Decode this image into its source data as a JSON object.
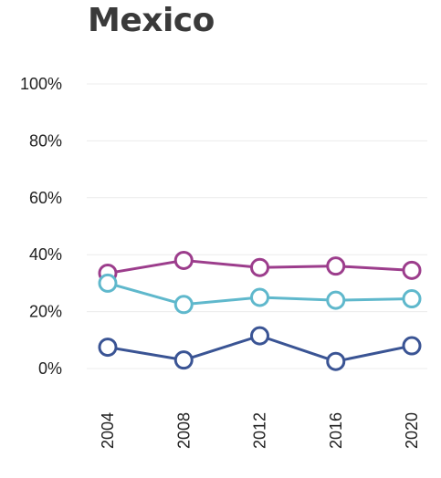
{
  "chart_data": {
    "type": "line",
    "title": "Mexico",
    "x": [
      "2004",
      "2008",
      "2012",
      "2016",
      "2020"
    ],
    "ylim": [
      0,
      100
    ],
    "yticks": [
      "0%",
      "20%",
      "40%",
      "60%",
      "80%",
      "100%"
    ],
    "grid": true,
    "series": [
      {
        "color": "#9c3d8c",
        "values": [
          33.5,
          38,
          35.5,
          36,
          34.5
        ]
      },
      {
        "color": "#5fb8cc",
        "values": [
          30,
          22.5,
          25,
          24,
          24.5
        ]
      },
      {
        "color": "#3a5494",
        "values": [
          7.5,
          3,
          11.5,
          2.5,
          8
        ]
      }
    ]
  }
}
